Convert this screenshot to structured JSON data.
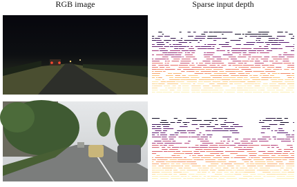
{
  "columns": [
    "RGB image",
    "Sparse input depth"
  ]
}
